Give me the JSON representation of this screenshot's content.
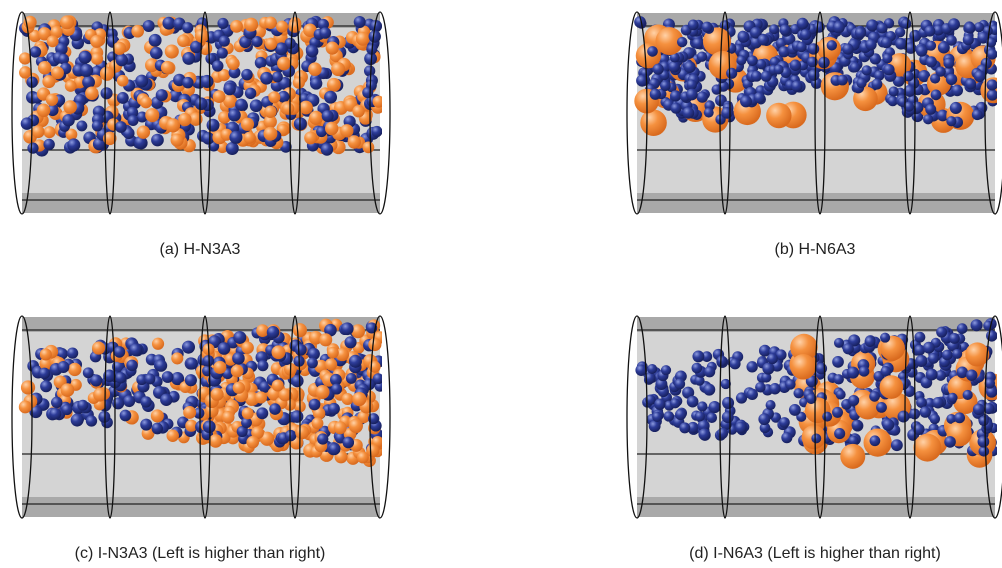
{
  "panels": [
    {
      "caption": "(a) H-N3A3"
    },
    {
      "caption": "(b) H-N6A3"
    },
    {
      "caption": "(c) I-N3A3 (Left is higher than right)"
    },
    {
      "caption": "(d) I-N6A3 (Left is higher than right)"
    }
  ]
}
